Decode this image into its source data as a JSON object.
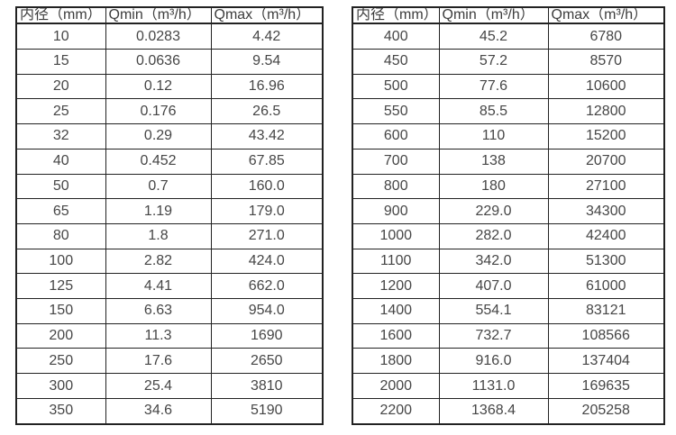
{
  "page": {
    "background": "#ffffff",
    "border_color": "#222222",
    "text_color": "#424242"
  },
  "tables": [
    {
      "name": "flow-table-small-diameters",
      "headers": [
        "内径（mm）",
        "Qmin（m³/h）",
        "Qmax（m³/h）"
      ],
      "rows": [
        [
          "10",
          "0.0283",
          "4.42"
        ],
        [
          "15",
          "0.0636",
          "9.54"
        ],
        [
          "20",
          "0.12",
          "16.96"
        ],
        [
          "25",
          "0.176",
          "26.5"
        ],
        [
          "32",
          "0.29",
          "43.42"
        ],
        [
          "40",
          "0.452",
          "67.85"
        ],
        [
          "50",
          "0.7",
          "160.0"
        ],
        [
          "65",
          "1.19",
          "179.0"
        ],
        [
          "80",
          "1.8",
          "271.0"
        ],
        [
          "100",
          "2.82",
          "424.0"
        ],
        [
          "125",
          "4.41",
          "662.0"
        ],
        [
          "150",
          "6.63",
          "954.0"
        ],
        [
          "200",
          "11.3",
          "1690"
        ],
        [
          "250",
          "17.6",
          "2650"
        ],
        [
          "300",
          "25.4",
          "3810"
        ],
        [
          "350",
          "34.6",
          "5190"
        ]
      ]
    },
    {
      "name": "flow-table-large-diameters",
      "headers": [
        "内径（mm）",
        "Qmin（m³/h）",
        "Qmax（m³/h）"
      ],
      "rows": [
        [
          "400",
          "45.2",
          "6780"
        ],
        [
          "450",
          "57.2",
          "8570"
        ],
        [
          "500",
          "77.6",
          "10600"
        ],
        [
          "550",
          "85.5",
          "12800"
        ],
        [
          "600",
          "110",
          "15200"
        ],
        [
          "700",
          "138",
          "20700"
        ],
        [
          "800",
          "180",
          "27100"
        ],
        [
          "900",
          "229.0",
          "34300"
        ],
        [
          "1000",
          "282.0",
          "42400"
        ],
        [
          "1100",
          "342.0",
          "51300"
        ],
        [
          "1200",
          "407.0",
          "61000"
        ],
        [
          "1400",
          "554.1",
          "83121"
        ],
        [
          "1600",
          "732.7",
          "108566"
        ],
        [
          "1800",
          "916.0",
          "137404"
        ],
        [
          "2000",
          "1131.0",
          "169635"
        ],
        [
          "2200",
          "1368.4",
          "205258"
        ]
      ]
    }
  ]
}
